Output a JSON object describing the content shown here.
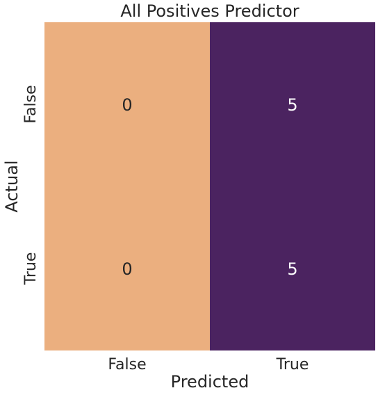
{
  "chart_data": {
    "type": "heatmap",
    "title": "All Positives Predictor",
    "xlabel": "Predicted",
    "ylabel": "Actual",
    "x_categories": [
      "False",
      "True"
    ],
    "y_categories": [
      "False",
      "True"
    ],
    "values": [
      [
        0,
        5
      ],
      [
        0,
        5
      ]
    ],
    "colors": {
      "low": "#ebaf7f",
      "high": "#4b2360",
      "annotation_on_low": "#262626",
      "annotation_on_high": "#ffffff"
    },
    "colorbar": false
  }
}
